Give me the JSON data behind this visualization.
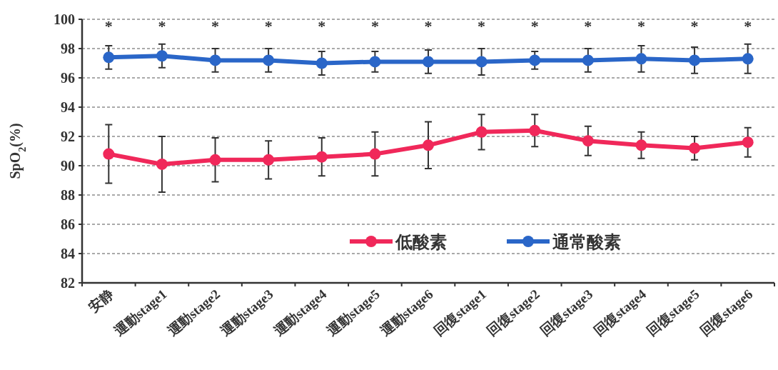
{
  "chart_data": {
    "type": "line",
    "ylabel": "SpO$_{2}$(%)",
    "categories": [
      "安静",
      "運動stage1",
      "運動stage2",
      "運動stage3",
      "運動stage4",
      "運動stage5",
      "運動stage6",
      "回復stage1",
      "回復stage2",
      "回復stage3",
      "回復stage4",
      "回復stage5",
      "回復stage6"
    ],
    "series": [
      {
        "name": "低酸素",
        "color": "#f0285a",
        "values": [
          90.8,
          90.1,
          90.4,
          90.4,
          90.6,
          90.8,
          91.4,
          92.3,
          92.4,
          91.7,
          91.4,
          91.2,
          91.6
        ],
        "errors": [
          2.0,
          1.9,
          1.5,
          1.3,
          1.3,
          1.5,
          1.6,
          1.2,
          1.1,
          1.0,
          0.9,
          0.8,
          1.0
        ]
      },
      {
        "name": "通常酸素",
        "color": "#2a66c8",
        "values": [
          97.4,
          97.5,
          97.2,
          97.2,
          97.0,
          97.1,
          97.1,
          97.1,
          97.2,
          97.2,
          97.3,
          97.2,
          97.3
        ],
        "errors": [
          0.8,
          0.8,
          0.8,
          0.8,
          0.8,
          0.7,
          0.8,
          0.9,
          0.6,
          0.8,
          0.9,
          0.9,
          1.0
        ]
      }
    ],
    "annotations": [
      "*",
      "*",
      "*",
      "*",
      "*",
      "*",
      "*",
      "*",
      "*",
      "*",
      "*",
      "*",
      "*"
    ],
    "ylim": [
      82,
      100
    ],
    "yticks": [
      82,
      84,
      86,
      88,
      90,
      92,
      94,
      96,
      98,
      100
    ],
    "grid": "y",
    "legend": "bottom",
    "marker": "circle",
    "line_style": "solid"
  }
}
